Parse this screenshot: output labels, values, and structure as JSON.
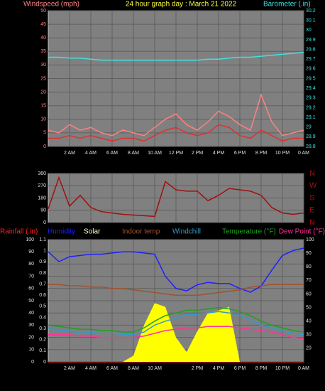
{
  "chart_data": [
    {
      "type": "line",
      "title": "24 hour graph day : March 21 2022",
      "ylabel": "Windspeed (mph)",
      "y2label": "Barometer (.in)",
      "title_color": "#ffff40",
      "ycolor": "#ff8080",
      "y2color": "#40e0e0",
      "x": [
        0,
        1,
        2,
        3,
        4,
        5,
        6,
        7,
        8,
        9,
        10,
        11,
        12,
        13,
        14,
        15,
        16,
        17,
        18,
        19,
        20,
        21,
        22,
        23,
        24
      ],
      "xlim": [
        0,
        24
      ],
      "xticks": [
        {
          "value": 2,
          "label": "2 AM"
        },
        {
          "value": 4,
          "label": "4 AM"
        },
        {
          "value": 6,
          "label": "6 AM"
        },
        {
          "value": 8,
          "label": "8 AM"
        },
        {
          "value": 10,
          "label": "10 AM"
        },
        {
          "value": 12,
          "label": "12 PM"
        },
        {
          "value": 14,
          "label": "2 PM"
        },
        {
          "value": 16,
          "label": "4 PM"
        },
        {
          "value": 18,
          "label": "6 PM"
        },
        {
          "value": 20,
          "label": "8 PM"
        },
        {
          "value": 22,
          "label": "10 PM"
        },
        {
          "value": 24,
          "label": "0 AM"
        }
      ],
      "ylim": [
        0,
        50
      ],
      "yticks": [
        0,
        5,
        10,
        15,
        20,
        25,
        30,
        35,
        40,
        45,
        50
      ],
      "y2lim": [
        28.8,
        30.2
      ],
      "y2ticks": [
        28.8,
        28.9,
        29,
        29.1,
        29.2,
        29.3,
        29.4,
        29.5,
        29.6,
        29.7,
        29.8,
        29.9,
        30,
        30.1,
        30.2
      ],
      "grid": true,
      "series": [
        {
          "color": "#ff8080",
          "values": [
            6,
            5,
            8,
            6,
            7,
            5,
            4,
            6,
            5,
            4,
            7,
            10,
            12,
            8,
            6,
            9,
            13,
            11,
            8,
            6,
            19,
            9,
            4,
            5,
            6
          ]
        },
        {
          "color": "#e03030",
          "values": [
            3,
            3,
            4,
            3,
            4,
            3,
            2,
            3,
            3,
            2,
            4,
            6,
            7,
            5,
            4,
            5,
            8,
            7,
            4,
            3,
            6,
            4,
            2,
            3,
            3
          ]
        },
        {
          "color": "#40e0e0",
          "axis": "y2",
          "values": [
            29.72,
            29.72,
            29.71,
            29.71,
            29.7,
            29.69,
            29.69,
            29.69,
            29.69,
            29.69,
            29.69,
            29.69,
            29.69,
            29.69,
            29.69,
            29.7,
            29.7,
            29.71,
            29.72,
            29.72,
            29.73,
            29.74,
            29.75,
            29.76,
            29.77
          ]
        }
      ]
    },
    {
      "type": "line",
      "ycolor": "#e0e0e0",
      "y2color": "#a01010",
      "x": [
        0,
        1,
        2,
        3,
        4,
        5,
        6,
        7,
        8,
        9,
        10,
        11,
        12,
        13,
        14,
        15,
        16,
        17,
        18,
        19,
        20,
        21,
        22,
        23,
        24
      ],
      "xlim": [
        0,
        24
      ],
      "xticks": [
        2,
        4,
        6,
        8,
        10,
        12,
        14,
        16,
        18,
        20,
        22,
        24
      ],
      "ylim": [
        0,
        360
      ],
      "yticks": [
        0,
        90,
        180,
        270,
        360
      ],
      "y2lim": [
        0,
        360
      ],
      "y2ticks": [
        {
          "value": 0,
          "label": "N"
        },
        {
          "value": 90,
          "label": "E"
        },
        {
          "value": 180,
          "label": "S"
        },
        {
          "value": 270,
          "label": "W"
        },
        {
          "value": 360,
          "label": "N"
        }
      ],
      "grid": true,
      "series": [
        {
          "color": "#a01010",
          "values": [
            100,
            330,
            120,
            200,
            110,
            80,
            70,
            60,
            55,
            50,
            45,
            300,
            240,
            230,
            230,
            160,
            200,
            250,
            240,
            230,
            200,
            110,
            70,
            60,
            70
          ]
        }
      ]
    },
    {
      "type": "line",
      "ycolor": "#e0e0e0",
      "y2color": "#e0e0e0",
      "raincolor": "#e0e0e0",
      "x": [
        0,
        1,
        2,
        3,
        4,
        5,
        6,
        7,
        8,
        9,
        10,
        11,
        12,
        13,
        14,
        15,
        16,
        17,
        18,
        19,
        20,
        21,
        22,
        23,
        24
      ],
      "xlim": [
        0,
        24
      ],
      "xticks": [
        {
          "value": 2,
          "label": "2 AM"
        },
        {
          "value": 4,
          "label": "4 AM"
        },
        {
          "value": 6,
          "label": "6 AM"
        },
        {
          "value": 8,
          "label": "8 AM"
        },
        {
          "value": 10,
          "label": "10 AM"
        },
        {
          "value": 14,
          "label": "2 PM"
        },
        {
          "value": 16,
          "label": "4 PM"
        },
        {
          "value": 18,
          "label": "6 PM"
        },
        {
          "value": 20,
          "label": "8 PM"
        },
        {
          "value": 22,
          "label": "10 PM"
        },
        {
          "value": 24,
          "label": "0 AM"
        }
      ],
      "ylim": [
        0,
        100
      ],
      "yticks": [
        0,
        10,
        20,
        30,
        40,
        50,
        60,
        70,
        80,
        90,
        100
      ],
      "rainlim": [
        0,
        1.1
      ],
      "rainticks": [
        0,
        0.1,
        0.2,
        0.3,
        0.4,
        0.5,
        0.6,
        0.7,
        0.8,
        0.9,
        1,
        1.1
      ],
      "y2lim": [
        10,
        100
      ],
      "y2ticks": [
        20,
        30,
        40,
        50,
        60,
        70,
        80,
        90,
        100
      ],
      "grid": true,
      "series": [
        {
          "name": "Rainfall (.in)",
          "color": "#ff2020",
          "axis": "rain",
          "values": [
            0,
            0,
            0,
            0,
            0,
            0,
            0,
            0,
            0,
            0,
            0,
            0,
            0,
            0,
            0,
            0,
            0,
            0,
            0,
            0,
            0,
            0,
            0,
            0,
            0
          ]
        },
        {
          "name": "Humidity",
          "color": "#2020ff",
          "values": [
            90,
            82,
            86,
            87,
            88,
            88,
            89,
            90,
            90,
            89,
            88,
            70,
            60,
            58,
            63,
            65,
            64,
            64,
            60,
            57,
            62,
            75,
            87,
            91,
            93
          ]
        },
        {
          "name": "Solar",
          "color": "#ffff00",
          "style": "area",
          "values": [
            0,
            0,
            0,
            0,
            0,
            0,
            0,
            0,
            5,
            30,
            48,
            45,
            20,
            8,
            25,
            40,
            42,
            45,
            0,
            0,
            0,
            0,
            0,
            0,
            0
          ]
        },
        {
          "name": "Indoor temp",
          "color": "#a0522d",
          "axis": "y2",
          "values": [
            67,
            67,
            66,
            66,
            65,
            65,
            64,
            64,
            63,
            62,
            61,
            60,
            59,
            59,
            59,
            60,
            61,
            62,
            63,
            65,
            66,
            67,
            67,
            67,
            67
          ]
        },
        {
          "name": "Windchill",
          "color": "#3399cc",
          "axis": "y2",
          "values": [
            35,
            33,
            33,
            31,
            32,
            31,
            31,
            30,
            30,
            32,
            37,
            40,
            42,
            45,
            45,
            46,
            47,
            46,
            44,
            41,
            37,
            35,
            33,
            31,
            30
          ]
        },
        {
          "name": "Temperature (°F)",
          "color": "#20a020",
          "axis": "y2",
          "values": [
            37,
            36,
            35,
            34,
            34,
            33,
            33,
            32,
            32,
            35,
            40,
            44,
            46,
            48,
            48,
            49,
            50,
            49,
            47,
            44,
            40,
            37,
            35,
            33,
            32
          ]
        },
        {
          "name": "Dew Point (°F)",
          "color": "#ff3399",
          "axis": "y2",
          "values": [
            30,
            30,
            30,
            29,
            29,
            28,
            28,
            28,
            28,
            29,
            31,
            33,
            34,
            35,
            35,
            36,
            36,
            36,
            35,
            34,
            33,
            32,
            30,
            28,
            27
          ]
        }
      ]
    }
  ]
}
